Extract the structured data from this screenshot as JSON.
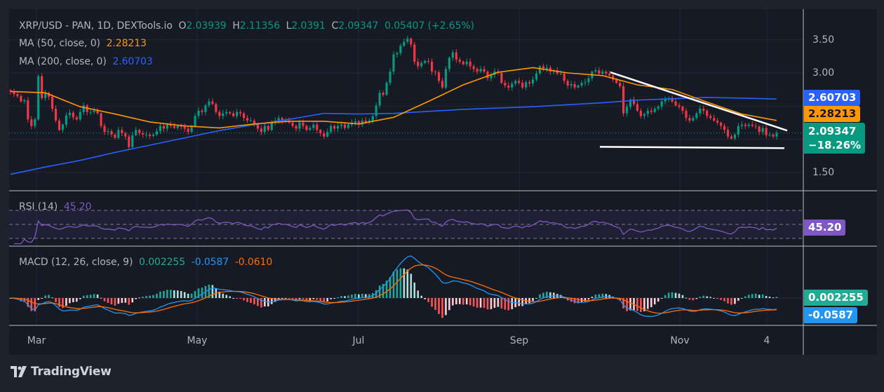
{
  "header": {
    "symbol": "XRP/USD - PAN, 1D, DEXTools.io",
    "o_label": "O",
    "o": "2.03939",
    "h_label": "H",
    "h": "2.11356",
    "l_label": "L",
    "l": "2.0391",
    "c_label": "C",
    "c": "2.09347",
    "change": "0.05407 (+2.65%)"
  },
  "ma50": {
    "label": "MA (50, close, 0)",
    "value": "2.28213"
  },
  "ma200": {
    "label": "MA (200, close, 0)",
    "value": "2.60703"
  },
  "rsi": {
    "label": "RSI (14)",
    "value": "45.20"
  },
  "macd": {
    "label": "MACD (12, 26, close, 9)",
    "hist": "0.002255",
    "macd": "-0.0587",
    "signal": "-0.0610"
  },
  "price_axis": {
    "ticks": [
      "3.50",
      "3.00",
      "1.50"
    ],
    "ma200_label": "2.60703",
    "ma50_label": "2.28213",
    "last_price": "2.09347",
    "last_change": "−18.26%",
    "rsi_label": "45.20",
    "macd_hist_label": "0.002255",
    "macd_label": "-0.0587"
  },
  "time_axis": [
    "Mar",
    "May",
    "Jul",
    "Sep",
    "Nov",
    "4"
  ],
  "brand": "TradingView",
  "colors": {
    "up": "#089981",
    "down": "#f23645",
    "ma50": "#ff9800",
    "ma200": "#2962ff",
    "rsi": "#7e57c2",
    "macd": "#2196f3",
    "signal": "#ff6d00",
    "hist_up": "#26a69a",
    "hist_down": "#ff5252",
    "trendline": "#ffffff"
  },
  "chart_data": {
    "type": "candlestick",
    "ylim": [
      1.22,
      3.96
    ],
    "grid": true,
    "closes": [
      2.72,
      2.68,
      2.65,
      2.57,
      2.59,
      2.3,
      2.2,
      2.3,
      2.95,
      2.62,
      2.7,
      2.64,
      2.46,
      2.28,
      2.14,
      2.22,
      2.36,
      2.4,
      2.33,
      2.3,
      2.41,
      2.51,
      2.41,
      2.41,
      2.43,
      2.39,
      2.2,
      2.11,
      2.12,
      2.07,
      2.02,
      2.14,
      2.09,
      2.04,
      1.88,
      2.06,
      2.14,
      2.09,
      2.07,
      2.07,
      2.05,
      2.07,
      2.12,
      2.2,
      2.16,
      2.22,
      2.2,
      2.17,
      2.2,
      2.19,
      2.16,
      2.11,
      2.2,
      2.35,
      2.43,
      2.41,
      2.51,
      2.57,
      2.53,
      2.41,
      2.35,
      2.39,
      2.41,
      2.39,
      2.35,
      2.41,
      2.39,
      2.32,
      2.28,
      2.28,
      2.22,
      2.16,
      2.11,
      2.2,
      2.14,
      2.25,
      2.28,
      2.32,
      2.28,
      2.28,
      2.25,
      2.2,
      2.16,
      2.25,
      2.2,
      2.14,
      2.17,
      2.22,
      2.14,
      2.09,
      2.04,
      2.11,
      2.2,
      2.16,
      2.2,
      2.22,
      2.17,
      2.22,
      2.25,
      2.27,
      2.22,
      2.28,
      2.25,
      2.28,
      2.35,
      2.51,
      2.7,
      2.67,
      2.85,
      3.02,
      3.28,
      3.3,
      3.41,
      3.47,
      3.52,
      3.43,
      3.17,
      3.1,
      3.15,
      3.18,
      3.17,
      3.02,
      3.01,
      2.88,
      2.78,
      3.06,
      3.23,
      3.31,
      3.2,
      3.17,
      3.13,
      3.17,
      3.1,
      3.06,
      3.02,
      3.06,
      3.02,
      2.92,
      2.97,
      3.02,
      3.0,
      2.85,
      2.81,
      2.78,
      2.84,
      2.88,
      2.85,
      2.78,
      2.86,
      2.84,
      2.9,
      2.99,
      3.1,
      3.06,
      3.08,
      3.02,
      3.04,
      2.99,
      2.99,
      2.88,
      2.81,
      2.83,
      2.78,
      2.81,
      2.85,
      2.86,
      2.92,
      3.02,
      3.04,
      2.99,
      3.02,
      2.99,
      2.96,
      2.9,
      2.85,
      2.8,
      2.39,
      2.49,
      2.6,
      2.53,
      2.43,
      2.35,
      2.38,
      2.43,
      2.41,
      2.46,
      2.49,
      2.57,
      2.6,
      2.62,
      2.57,
      2.51,
      2.49,
      2.43,
      2.32,
      2.28,
      2.32,
      2.39,
      2.46,
      2.43,
      2.35,
      2.32,
      2.28,
      2.25,
      2.2,
      2.14,
      2.04,
      2.01,
      2.07,
      2.2,
      2.22,
      2.2,
      2.22,
      2.2,
      2.19,
      2.11,
      2.17,
      2.06,
      2.07,
      2.04,
      2.09347
    ],
    "ma50": [
      2.72,
      2.7,
      2.49,
      2.38,
      2.26,
      2.2,
      2.17,
      2.23,
      2.27,
      2.27,
      2.23,
      2.33,
      2.57,
      2.82,
      3.01,
      3.08,
      3.0,
      2.96,
      2.82,
      2.75,
      2.56,
      2.38,
      2.28213
    ],
    "ma200": [
      1.47,
      1.58,
      1.68,
      1.8,
      1.91,
      2.02,
      2.13,
      2.22,
      2.3,
      2.39,
      2.38,
      2.39,
      2.42,
      2.45,
      2.47,
      2.49,
      2.52,
      2.55,
      2.59,
      2.61,
      2.63,
      2.62,
      2.60703
    ],
    "trendlines": [
      {
        "name": "descending-resistance",
        "from_price": 3.01,
        "to_price": 2.13
      },
      {
        "name": "horizontal-support",
        "from_price": 1.885,
        "to_price": 1.865
      }
    ],
    "rsi_levels": [
      70,
      50,
      30
    ],
    "rsi_period": 14,
    "macd_params": [
      12,
      26,
      9
    ]
  }
}
